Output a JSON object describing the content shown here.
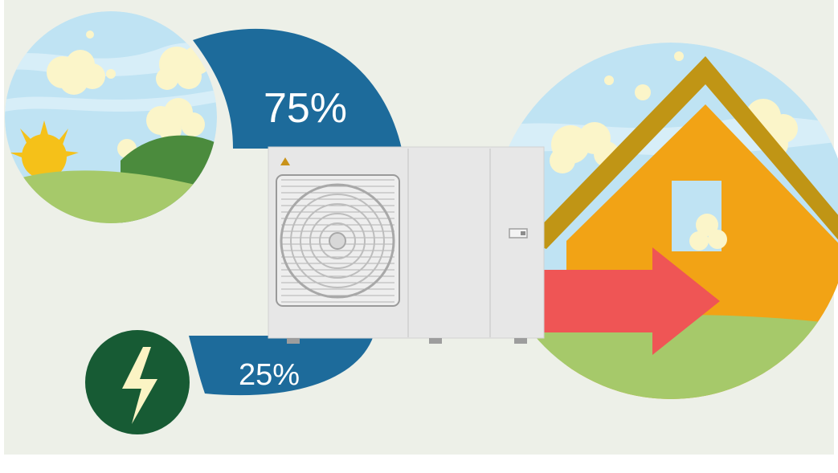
{
  "diagram": {
    "labels": {
      "ambient_share": "75%",
      "electric_share": "25%"
    },
    "colors": {
      "background": "#edf0e8",
      "band_blue": "#1d6b9b",
      "sky": "#bfe3f3",
      "cloud": "#fbf5c9",
      "sun": "#f5c119",
      "hill_dark": "#4b8b3d",
      "hill_light": "#a6c96a",
      "house_wall": "#f2a315",
      "roof": "#c09515",
      "arrow": "#ef5555",
      "lightning_circle": "#175b34",
      "lightning_bolt": "#fbf4c4",
      "unit_body": "#e7e7e7"
    },
    "icons": {
      "ambient": "sun-landscape-icon",
      "electric": "lightning-icon",
      "unit": "heat-pump-unit",
      "home": "house-icon",
      "heat_flow": "arrow-right-icon",
      "warning": "warning-triangle-icon"
    }
  }
}
